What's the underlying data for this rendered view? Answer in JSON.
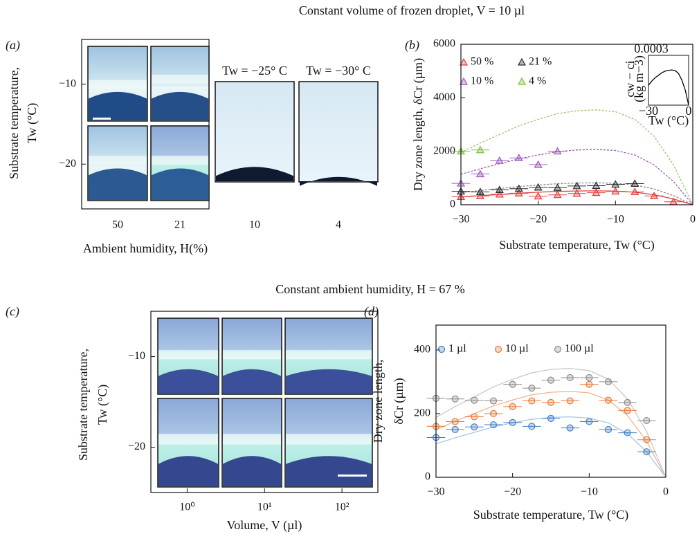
{
  "headings": [
    "Constant volume of frozen droplet, V = 10 µl",
    "Constant ambient humidity, H = 67 %"
  ],
  "chart_data": [
    {
      "type": "image-grid",
      "panel_label": "(a)",
      "y_label": [
        "Substrate temperature,",
        "Tw (°C)"
      ],
      "x_label": "Ambient humidity, H(%)",
      "categories": [
        "50",
        "21",
        "10",
        "4"
      ],
      "ylim": [
        -25.6,
        -4.4
      ],
      "yticks": [
        {
          "value": -10,
          "label": "−10"
        },
        {
          "value": -20,
          "label": "−20"
        }
      ],
      "annotations": [
        "Tw = −25° C",
        "Tw = −30° C"
      ]
    },
    {
      "type": "scatter",
      "panel_label": "(b)",
      "y_label": [
        "Dry zone length, δCr (µm)"
      ],
      "x_label": "Substrate temperature, Tw (°C)",
      "xlim": [
        -30,
        0
      ],
      "xticks": [
        {
          "value": -30,
          "label": "−30"
        },
        {
          "value": -20,
          "label": "−20"
        },
        {
          "value": -10,
          "label": "−10"
        },
        0
      ],
      "ylim": [
        0,
        6000
      ],
      "yticks": [
        0,
        2000,
        4000,
        6000
      ],
      "marker": "triangle",
      "series": [
        {
          "name": "50 %",
          "color": "#e03c3c",
          "xerr": 1.2,
          "x": [
            -30,
            -27.5,
            -25,
            -22.5,
            -20,
            -17.5,
            -15,
            -12.5,
            -10,
            -7.5,
            -5,
            -2.5
          ],
          "values": [
            300,
            330,
            390,
            430,
            320,
            370,
            420,
            450,
            500,
            480,
            330,
            110
          ]
        },
        {
          "name": "21 %",
          "color": "#2b2b2b",
          "xerr": 1.2,
          "x": [
            -30,
            -27.5,
            -25,
            -22.5,
            -20,
            -17.5,
            -15,
            -12.5,
            -10,
            -7.5
          ],
          "values": [
            500,
            480,
            560,
            600,
            650,
            640,
            700,
            710,
            760,
            790
          ]
        },
        {
          "name": "10 %",
          "color": "#9b59b6",
          "xerr": 1.2,
          "x": [
            -30,
            -27.5,
            -25,
            -22.5,
            -20,
            -17.5
          ],
          "values": [
            800,
            1150,
            1650,
            1750,
            1500,
            2000
          ]
        },
        {
          "name": "4 %",
          "color": "#7cbf3a",
          "xerr": 1.2,
          "x": [
            -30,
            -27.5
          ],
          "values": [
            2000,
            2050
          ]
        }
      ],
      "fit_x": [
        -30,
        -27.5,
        -25,
        -22.5,
        -20,
        -17.5,
        -15,
        -12.5,
        -10,
        -7.5,
        -5,
        -2.5,
        0
      ],
      "fits": [
        {
          "color": "#e03c3c",
          "dashed": false,
          "values": [
            286,
            338,
            385,
            432,
            468,
            499,
            515,
            520,
            510,
            468,
            374,
            218,
            0
          ]
        },
        {
          "color": "#888888",
          "dashed": true,
          "values": [
            451,
            533,
            607,
            681,
            738,
            787,
            812,
            820,
            804,
            738,
            590,
            344,
            0
          ]
        },
        {
          "color": "#9b59b6",
          "dashed": true,
          "values": [
            1139,
            1346,
            1532,
            1718,
            1863,
            1987,
            2049,
            2070,
            2029,
            1863,
            1490,
            869,
            0
          ]
        },
        {
          "color": "#9cc46a",
          "dashed": true,
          "values": [
            1953,
            2308,
            2627,
            2947,
            3195,
            3408,
            3515,
            3550,
            3479,
            3195,
            2556,
            1491,
            0
          ]
        }
      ]
    },
    {
      "type": "line",
      "y_label": [
        "cw − ci",
        "(kg m−3)"
      ],
      "x_label": "Tw (°C)",
      "xlim": [
        -30,
        0
      ],
      "xticks": [
        {
          "value": -30,
          "label": "−30"
        },
        0
      ],
      "ylim": [
        0,
        0.0003
      ],
      "yticks": [
        0.0003
      ],
      "color": "#000000",
      "x": [
        -30,
        -27.5,
        -25,
        -22.5,
        -20,
        -17.5,
        -15,
        -12.5,
        -10,
        -7.5,
        -5,
        -2.5,
        0
      ],
      "values": [
        0.00012,
        0.000145,
        0.000165,
        0.00018,
        0.000195,
        0.000205,
        0.00021,
        0.000212,
        0.000208,
        0.00019,
        0.00015,
        9e-05,
        0
      ]
    },
    {
      "type": "image-grid",
      "panel_label": "(c)",
      "y_label": [
        "Substrate temperature,",
        "Tw (°C)"
      ],
      "x_label": "Volume, V (µl)",
      "log_x": true,
      "xlim": [
        0.34,
        291
      ],
      "xticks": [
        {
          "value": 1,
          "label": "10⁰"
        },
        {
          "value": 10,
          "label": "10¹"
        },
        {
          "value": 100,
          "label": "10²"
        }
      ],
      "ylim": [
        -25,
        -5
      ],
      "yticks": [
        {
          "value": -10,
          "label": "−10"
        },
        {
          "value": -20,
          "label": "−20"
        }
      ]
    },
    {
      "type": "scatter",
      "panel_label": "(d)",
      "y_label": [
        "Dry zone length,",
        "δCr (µm)"
      ],
      "x_label": "Substrate temperature, Tw (°C)",
      "xlim": [
        -30,
        0
      ],
      "xticks": [
        {
          "value": -30,
          "label": "−30"
        },
        {
          "value": -20,
          "label": "−20"
        },
        {
          "value": -10,
          "label": "−10"
        },
        0
      ],
      "ylim": [
        0,
        478
      ],
      "yticks": [
        0,
        200,
        400
      ],
      "marker": "circle",
      "series": [
        {
          "name": "1 µl",
          "color": "#3f7fc4",
          "xerr": 1.2,
          "x": [
            -30,
            -27.5,
            -25,
            -22.5,
            -20,
            -17.5,
            -15,
            -12.5,
            -10,
            -7.5,
            -5,
            -2.5
          ],
          "values": [
            125,
            150,
            158,
            165,
            172,
            160,
            185,
            155,
            175,
            150,
            140,
            80
          ]
        },
        {
          "name": "10 µl",
          "color": "#e8793a",
          "xerr": 1.2,
          "x": [
            -30,
            -27.5,
            -25,
            -22.5,
            -20,
            -17.5,
            -15,
            -12.5,
            -10,
            -7.5,
            -5,
            -2.5
          ],
          "values": [
            160,
            175,
            190,
            200,
            222,
            240,
            235,
            240,
            292,
            242,
            210,
            118
          ]
        },
        {
          "name": "100 µl",
          "color": "#8c8c8c",
          "xerr": 1.2,
          "x": [
            -30,
            -27.5,
            -25,
            -22.5,
            -20,
            -17.5,
            -15,
            -12.5,
            -10,
            -7.5,
            -5,
            -2.5
          ],
          "values": [
            248,
            246,
            242,
            240,
            292,
            280,
            305,
            313,
            313,
            300,
            235,
            178
          ]
        }
      ],
      "fit_x": [
        -30,
        -27.5,
        -25,
        -22.5,
        -20,
        -17.5,
        -15,
        -12.5,
        -10,
        -7.5,
        -5,
        -2.5,
        0
      ],
      "fits": [
        {
          "color": "#a9c6e8",
          "dashed": false,
          "values": [
            105,
            124,
            141,
            158,
            171,
            182,
            188,
            190,
            186,
            171,
            137,
            80,
            0
          ]
        },
        {
          "color": "#f2b48e",
          "dashed": false,
          "values": [
            149,
            176,
            200,
            224,
            243,
            259,
            267,
            270,
            265,
            243,
            194,
            113,
            0
          ]
        },
        {
          "color": "#c8c8c8",
          "dashed": false,
          "values": [
            188,
            222,
            253,
            284,
            308,
            328,
            339,
            342,
            335,
            308,
            246,
            144,
            0
          ]
        }
      ]
    }
  ]
}
